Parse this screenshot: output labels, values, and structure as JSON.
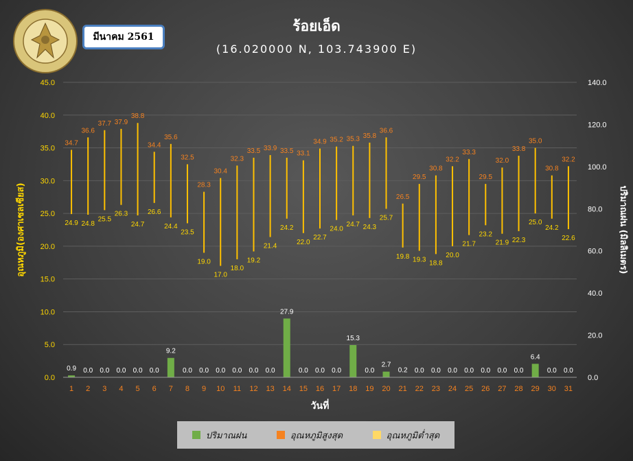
{
  "header": {
    "month_label": "มีนาคม 2561",
    "logo_text_top": "กรมอุตุนิยมวิทยา",
    "logo_text_bottom": "METEOROLOGICAL DEPARTMENT"
  },
  "chart_data": {
    "type": "bar",
    "title": "ร้อยเอ็ด",
    "subtitle": "(16.020000  N, 103.743900  E)",
    "xlabel": "วันที่",
    "ylabel_left": "อุณหภูมิ(องศาเซลเซียส)",
    "ylabel_right": "ปริมาณฝน (มิลลิเมตร)",
    "ylim_left": [
      0,
      45
    ],
    "ylim_right": [
      0,
      140
    ],
    "yticks_left": [
      "0.0",
      "5.0",
      "10.0",
      "15.0",
      "20.0",
      "25.0",
      "30.0",
      "35.0",
      "40.0",
      "45.0"
    ],
    "yticks_right": [
      "0.0",
      "20.0",
      "40.0",
      "60.0",
      "80.0",
      "100.0",
      "120.0",
      "140.0"
    ],
    "categories": [
      "1",
      "2",
      "3",
      "4",
      "5",
      "6",
      "7",
      "8",
      "9",
      "10",
      "11",
      "12",
      "13",
      "14",
      "15",
      "16",
      "17",
      "18",
      "19",
      "20",
      "21",
      "22",
      "23",
      "24",
      "25",
      "26",
      "27",
      "28",
      "29",
      "30",
      "31"
    ],
    "series": [
      {
        "name": "ปริมาณฝน",
        "axis": "right",
        "color": "#70ad47",
        "values": [
          0.9,
          0.0,
          0.0,
          0.0,
          0.0,
          0.0,
          9.2,
          0.0,
          0.0,
          0.0,
          0.0,
          0.0,
          0.0,
          27.9,
          0.0,
          0.0,
          0.0,
          15.3,
          0.0,
          2.7,
          0.2,
          0.0,
          0.0,
          0.0,
          0.0,
          0.0,
          0.0,
          0.0,
          6.4,
          0.0,
          0.0
        ],
        "labels": [
          "0.9",
          "0.0",
          "0.0",
          "0.0",
          "0.0",
          "0.0",
          "9.2",
          "0.0",
          "0.0",
          "0.0",
          "0.0",
          "0.0",
          "0.0",
          "27.9",
          "0.0",
          "0.0",
          "0.0",
          "15.3",
          "0.0",
          "2.7",
          "0.2",
          "0.0",
          "0.0",
          "0.0",
          "0.0",
          "0.0",
          "0.0",
          "0.0",
          "6.4",
          "0.0",
          "0.0"
        ]
      },
      {
        "name": "อุณหภูมิสูงสุด",
        "axis": "left",
        "color": "#f58220",
        "values": [
          34.7,
          36.6,
          37.7,
          37.9,
          38.8,
          34.4,
          35.6,
          32.5,
          28.3,
          30.4,
          32.3,
          33.5,
          33.9,
          33.5,
          33.1,
          34.9,
          35.2,
          35.3,
          35.8,
          36.6,
          26.5,
          29.5,
          30.8,
          32.2,
          33.3,
          29.5,
          32.0,
          33.8,
          35.0,
          30.8,
          32.2
        ],
        "labels": [
          "34.7",
          "36.6",
          "37.7",
          "37.9",
          "38.8",
          "34.4",
          "35.6",
          "32.5",
          "28.3",
          "30.4",
          "32.3",
          "33.5",
          "33.9",
          "33.5",
          "33.1",
          "34.9",
          "35.2",
          "35.3",
          "35.8",
          "36.6",
          "26.5",
          "29.5",
          "30.8",
          "32.2",
          "33.3",
          "29.5",
          "32.0",
          "33.8",
          "35.0",
          "30.8",
          "32.2"
        ]
      },
      {
        "name": "อุณหภูมิต่ำสุด",
        "axis": "left",
        "color": "#ffd966",
        "values": [
          24.9,
          24.8,
          25.5,
          26.3,
          24.7,
          26.6,
          24.4,
          23.5,
          19.0,
          17.0,
          18.0,
          19.2,
          21.4,
          24.2,
          22.0,
          22.7,
          24.0,
          24.7,
          24.3,
          25.7,
          19.8,
          19.3,
          18.8,
          20.0,
          21.7,
          23.2,
          21.9,
          22.3,
          25.0,
          24.2,
          22.6
        ],
        "labels": [
          "24.9",
          "24.8",
          "25.5",
          "26.3",
          "24.7",
          "26.6",
          "24.4",
          "23.5",
          "19.0",
          "17.0",
          "18.0",
          "19.2",
          "21.4",
          "24.2",
          "22.0",
          "22.7",
          "24.0",
          "24.7",
          "24.3",
          "25.7",
          "19.8",
          "19.3",
          "18.8",
          "20.0",
          "21.7",
          "23.2",
          "21.9",
          "22.3",
          "25.0",
          "24.2",
          "22.6"
        ]
      }
    ],
    "colors": {
      "rain": "#70ad47",
      "tmax_label": "#f58220",
      "tmin_label": "#ffd700",
      "range_bar": "#ffc000",
      "left_axis": "#ffd700",
      "x_ticks": "#f58220"
    },
    "legend_position": "bottom",
    "grid": true
  },
  "legend": [
    {
      "label": "ปริมาณฝน",
      "color": "#70ad47"
    },
    {
      "label": "อุณหภูมิสูงสุด",
      "color": "#f58220"
    },
    {
      "label": "อุณหภูมิต่ำสุด",
      "color": "#ffd966"
    }
  ]
}
